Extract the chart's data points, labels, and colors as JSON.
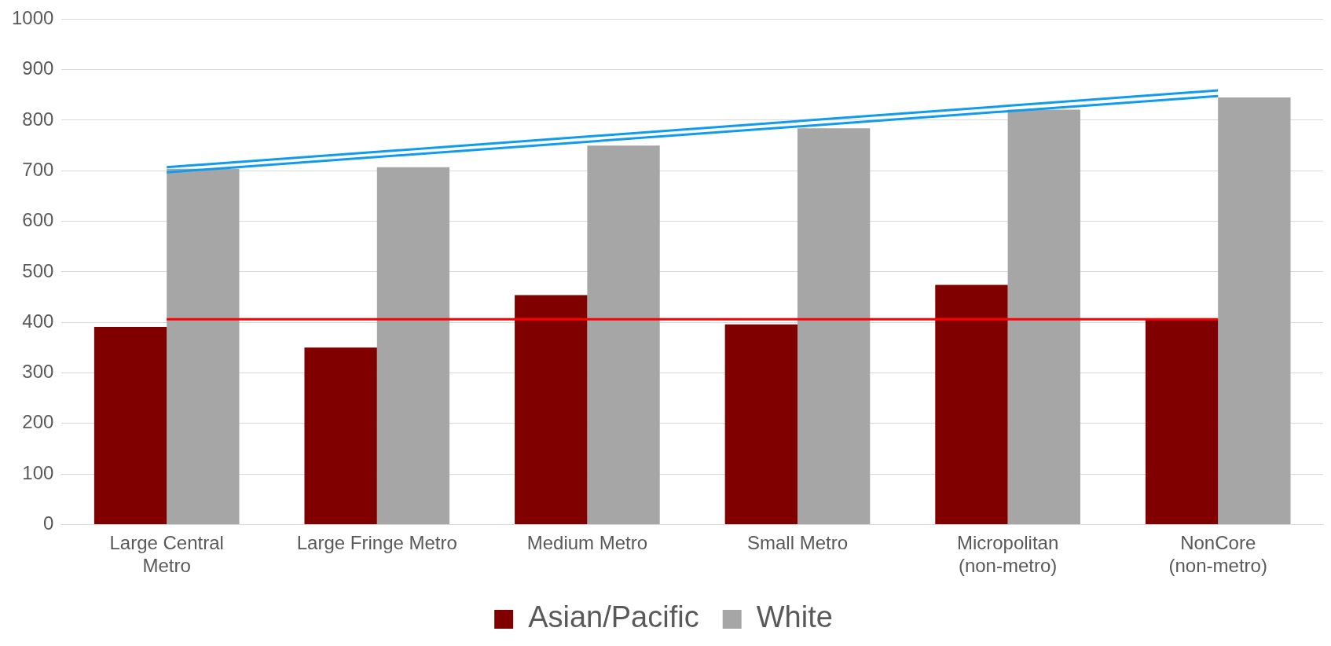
{
  "chart_data": {
    "type": "bar",
    "categories": [
      "Large Central Metro",
      "Large Fringe Metro",
      "Medium Metro",
      "Small Metro",
      "Micropolitan (non-metro)",
      "NonCore (non-metro)"
    ],
    "series": [
      {
        "name": "Asian/Pacific",
        "color": "#800000",
        "values": [
          391,
          350,
          454,
          396,
          474,
          405
        ]
      },
      {
        "name": "White",
        "color": "#a6a6a6",
        "values": [
          704,
          707,
          750,
          784,
          821,
          845
        ]
      },
      {
        "type": "line",
        "color": "#ff0000",
        "x": [
          "Large Central Metro",
          "NonCore (non-metro)"
        ],
        "values": [
          406,
          406
        ]
      },
      {
        "type": "line",
        "color": "#0f9ced",
        "x": [
          "Large Central Metro",
          "NonCore (non-metro)"
        ],
        "values": [
          707,
          859
        ]
      },
      {
        "type": "line",
        "color": "#0f9ced",
        "x": [
          "Large Central Metro",
          "NonCore (non-metro)"
        ],
        "values": [
          697,
          848
        ]
      }
    ],
    "ylim": [
      0,
      1000
    ],
    "yticks": [
      0,
      100,
      200,
      300,
      400,
      500,
      600,
      700,
      800,
      900,
      1000
    ],
    "grid": "y",
    "legend": "bottom",
    "marker": "none",
    "line_style": "solid"
  }
}
